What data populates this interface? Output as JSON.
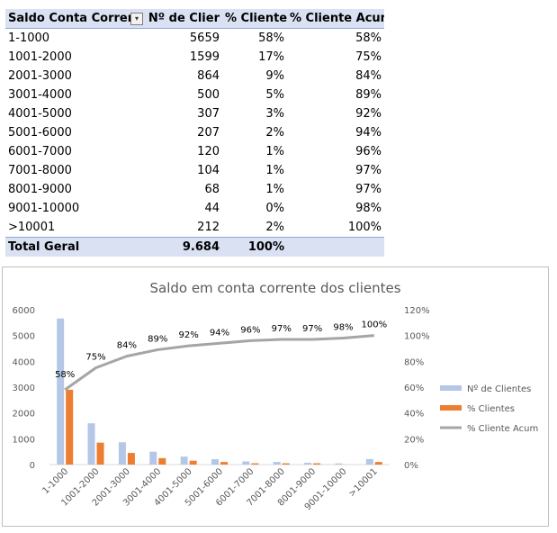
{
  "table": {
    "headers": [
      "Saldo Conta Corrent",
      "Nº de Clier",
      "% Clientes",
      "% Cliente Acum"
    ],
    "rows": [
      [
        "1-1000",
        "5659",
        "58%",
        "58%"
      ],
      [
        "1001-2000",
        "1599",
        "17%",
        "75%"
      ],
      [
        "2001-3000",
        "864",
        "9%",
        "84%"
      ],
      [
        "3001-4000",
        "500",
        "5%",
        "89%"
      ],
      [
        "4001-5000",
        "307",
        "3%",
        "92%"
      ],
      [
        "5001-6000",
        "207",
        "2%",
        "94%"
      ],
      [
        "6001-7000",
        "120",
        "1%",
        "96%"
      ],
      [
        "7001-8000",
        "104",
        "1%",
        "97%"
      ],
      [
        "8001-9000",
        "68",
        "1%",
        "97%"
      ],
      [
        "9001-10000",
        "44",
        "0%",
        "98%"
      ],
      [
        ">10001",
        "212",
        "2%",
        "100%"
      ]
    ],
    "total": [
      "Total Geral",
      "9.684",
      "100%",
      ""
    ]
  },
  "chart_data": {
    "type": "bar",
    "title": "Saldo em conta corrente dos clientes",
    "categories": [
      "1-1000",
      "1001-2000",
      "2001-3000",
      "3001-4000",
      "4001-5000",
      "5001-6000",
      "6001-7000",
      "7001-8000",
      "8001-9000",
      "9001-10000",
      ">10001"
    ],
    "series": [
      {
        "name": "Nº de Clientes",
        "type": "bar",
        "axis": "left",
        "color": "#b4c7e7",
        "values": [
          5659,
          1599,
          864,
          500,
          307,
          207,
          120,
          104,
          68,
          44,
          212
        ]
      },
      {
        "name": "% Clientes",
        "type": "bar",
        "axis": "right",
        "color": "#ed7d31",
        "values": [
          0.58,
          0.17,
          0.09,
          0.05,
          0.03,
          0.02,
          0.01,
          0.01,
          0.01,
          0.0,
          0.02
        ]
      },
      {
        "name": "% Cliente Acum",
        "type": "line",
        "axis": "right",
        "color": "#a5a5a5",
        "values": [
          0.58,
          0.75,
          0.84,
          0.89,
          0.92,
          0.94,
          0.96,
          0.97,
          0.97,
          0.98,
          1.0
        ],
        "labels": [
          "58%",
          "75%",
          "84%",
          "89%",
          "92%",
          "94%",
          "96%",
          "97%",
          "97%",
          "98%",
          "100%"
        ]
      }
    ],
    "ylim_left": [
      0,
      6000
    ],
    "yticks_left": [
      "0",
      "1000",
      "2000",
      "3000",
      "4000",
      "5000",
      "6000"
    ],
    "ylim_right": [
      0,
      1.2
    ],
    "yticks_right": [
      "0%",
      "20%",
      "40%",
      "60%",
      "80%",
      "100%",
      "120%"
    ],
    "legend": "right",
    "grid": false
  }
}
